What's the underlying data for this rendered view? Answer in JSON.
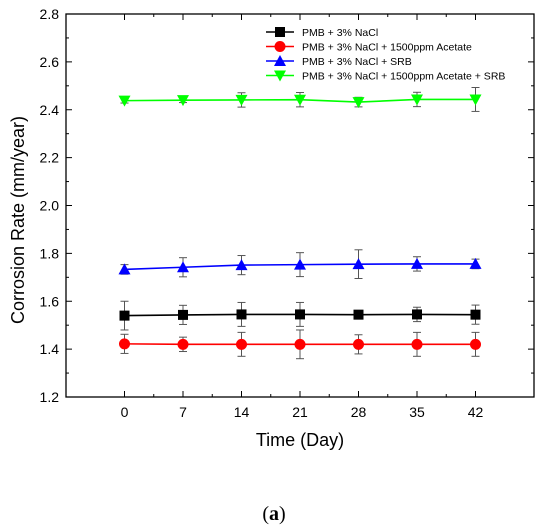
{
  "chart_data": {
    "type": "line",
    "xlabel": "Time (Day)",
    "ylabel": "Corrosion Rate (mm/year)",
    "panel_label_open": "(",
    "panel_label_letter": "a",
    "panel_label_close": ")",
    "x": [
      0,
      7,
      14,
      21,
      28,
      35,
      42
    ],
    "xlim": [
      -7,
      49
    ],
    "ylim": [
      1.2,
      2.8
    ],
    "x_ticks": [
      0,
      7,
      14,
      21,
      28,
      35,
      42
    ],
    "x_tick_labels": [
      "0",
      "7",
      "14",
      "21",
      "28",
      "35",
      "42"
    ],
    "y_ticks": [
      1.2,
      1.4,
      1.6,
      1.8,
      2.0,
      2.2,
      2.4,
      2.6,
      2.8
    ],
    "y_tick_labels": [
      "1.2",
      "1.4",
      "1.6",
      "1.8",
      "2.0",
      "2.2",
      "2.4",
      "2.6",
      "2.8"
    ],
    "grid": false,
    "legend_position": "top-right",
    "series": [
      {
        "name": "PMB + 3% NaCl",
        "color": "#000000",
        "marker": "square",
        "values": [
          1.54,
          1.543,
          1.545,
          1.545,
          1.544,
          1.545,
          1.544
        ],
        "errors": [
          0.06,
          0.04,
          0.05,
          0.05,
          0.01,
          0.03,
          0.04
        ]
      },
      {
        "name": "PMB + 3% NaCl + 1500ppm Acetate",
        "color": "#ff0000",
        "marker": "circle",
        "values": [
          1.422,
          1.42,
          1.42,
          1.42,
          1.42,
          1.42,
          1.42
        ],
        "errors": [
          0.04,
          0.03,
          0.05,
          0.06,
          0.04,
          0.05,
          0.05
        ]
      },
      {
        "name": "PMB + 3% NaCl + SRB",
        "color": "#0000ff",
        "marker": "triangle-up",
        "values": [
          1.733,
          1.742,
          1.751,
          1.753,
          1.755,
          1.756,
          1.756
        ],
        "errors": [
          0.02,
          0.04,
          0.04,
          0.05,
          0.06,
          0.03,
          0.02
        ]
      },
      {
        "name": "PMB + 3% NaCl + 1500ppm Acetate + SRB",
        "color": "#00ff00",
        "marker": "triangle-down",
        "values": [
          2.438,
          2.44,
          2.441,
          2.442,
          2.432,
          2.443,
          2.443
        ],
        "errors": [
          0.01,
          0.01,
          0.03,
          0.03,
          0.02,
          0.03,
          0.05
        ]
      }
    ]
  }
}
